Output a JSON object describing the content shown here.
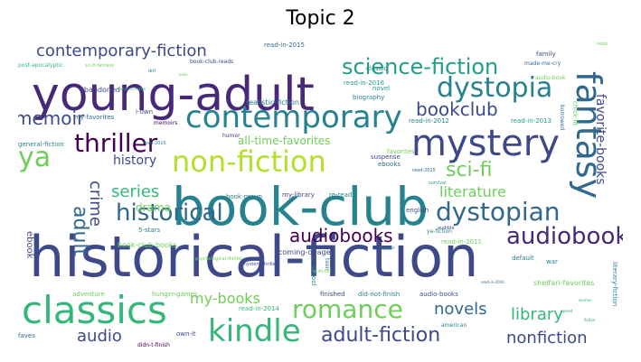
{
  "chart_data": {
    "type": "wordcloud",
    "title": "Topic 2",
    "colors": [
      "#440154",
      "#482878",
      "#3e4989",
      "#31688e",
      "#26828e",
      "#1f9e89",
      "#35b779",
      "#6ece58",
      "#b5de2b",
      "#fde725"
    ],
    "words": [
      {
        "text": "historical-fiction",
        "weight": 100
      },
      {
        "text": "book-club",
        "weight": 82
      },
      {
        "text": "young-adult",
        "weight": 78
      },
      {
        "text": "classics",
        "weight": 60
      },
      {
        "text": "mystery",
        "weight": 56
      },
      {
        "text": "contemporary",
        "weight": 52
      },
      {
        "text": "fantasy",
        "weight": 50
      },
      {
        "text": "kindle",
        "weight": 42
      },
      {
        "text": "non-fiction",
        "weight": 42
      },
      {
        "text": "dystopia",
        "weight": 40
      },
      {
        "text": "ya",
        "weight": 38
      },
      {
        "text": "romance",
        "weight": 36
      },
      {
        "text": "dystopian",
        "weight": 36
      },
      {
        "text": "thriller",
        "weight": 34
      },
      {
        "text": "audiobook",
        "weight": 34
      },
      {
        "text": "historical",
        "weight": 34
      },
      {
        "text": "science-fiction",
        "weight": 32
      },
      {
        "text": "adult-fiction",
        "weight": 30
      },
      {
        "text": "adult",
        "weight": 30
      },
      {
        "text": "memoir",
        "weight": 28
      },
      {
        "text": "bookclub",
        "weight": 28
      },
      {
        "text": "sci-fi",
        "weight": 28
      },
      {
        "text": "contemporary-fiction",
        "weight": 26
      },
      {
        "text": "audiobooks",
        "weight": 26
      },
      {
        "text": "series",
        "weight": 24
      },
      {
        "text": "novels",
        "weight": 24
      },
      {
        "text": "library",
        "weight": 24
      },
      {
        "text": "audio",
        "weight": 22
      },
      {
        "text": "crime",
        "weight": 22
      },
      {
        "text": "nonfiction",
        "weight": 22
      },
      {
        "text": "my-books",
        "weight": 22
      },
      {
        "text": "literature",
        "weight": 20
      },
      {
        "text": "favorite-books",
        "weight": 18
      },
      {
        "text": "history",
        "weight": 18
      },
      {
        "text": "all-time-favorites",
        "weight": 16
      },
      {
        "text": "drama",
        "weight": 14
      },
      {
        "text": "ebook",
        "weight": 12
      },
      {
        "text": "book-club-books",
        "weight": 10
      },
      {
        "text": "coming-of-age",
        "weight": 9
      },
      {
        "text": "shelfari-favorites",
        "weight": 9
      },
      {
        "text": "realistic-fiction",
        "weight": 9
      },
      {
        "text": "read-in-2016",
        "weight": 8
      },
      {
        "text": "read-in-2015",
        "weight": 8
      },
      {
        "text": "read-in-2012",
        "weight": 8
      },
      {
        "text": "read-in-2013",
        "weight": 8
      },
      {
        "text": "read-in-2014",
        "weight": 8
      },
      {
        "text": "read-in-2011",
        "weight": 8
      },
      {
        "text": "classic",
        "weight": 8
      },
      {
        "text": "novel",
        "weight": 8
      },
      {
        "text": "biography",
        "weight": 8
      },
      {
        "text": "chick-lit",
        "weight": 7
      },
      {
        "text": "abandoned",
        "weight": 8
      },
      {
        "text": "my-favorites",
        "weight": 7
      },
      {
        "text": "i-own",
        "weight": 7
      },
      {
        "text": "general-fiction",
        "weight": 7
      },
      {
        "text": "suspense",
        "weight": 7
      },
      {
        "text": "ebooks",
        "weight": 7
      },
      {
        "text": "favorites",
        "weight": 7
      },
      {
        "text": "5-stars",
        "weight": 6
      },
      {
        "text": "book-group",
        "weight": 6
      },
      {
        "text": "my-library",
        "weight": 6
      },
      {
        "text": "re-read",
        "weight": 6
      },
      {
        "text": "english",
        "weight": 6
      },
      {
        "text": "survival",
        "weight": 5
      },
      {
        "text": "default",
        "weight": 7
      },
      {
        "text": "war",
        "weight": 6
      },
      {
        "text": "school",
        "weight": 6
      },
      {
        "text": "teen",
        "weight": 5
      },
      {
        "text": "adventure",
        "weight": 6
      },
      {
        "text": "hunger-games",
        "weight": 6
      },
      {
        "text": "finished",
        "weight": 6
      },
      {
        "text": "did-not-finish",
        "weight": 6
      },
      {
        "text": "audio-books",
        "weight": 6
      },
      {
        "text": "literary-fiction",
        "weight": 6
      },
      {
        "text": "own-it",
        "weight": 6
      },
      {
        "text": "american",
        "weight": 5
      },
      {
        "text": "didn-t-finish",
        "weight": 5
      },
      {
        "text": "faves",
        "weight": 5
      },
      {
        "text": "post-apocalyptic",
        "weight": 5
      },
      {
        "text": "sci-fi-fantasy",
        "weight": 4
      },
      {
        "text": "book-club-reads",
        "weight": 5
      },
      {
        "text": "made-me-cry",
        "weight": 5
      },
      {
        "text": "family",
        "weight": 5
      },
      {
        "text": "audio-book",
        "weight": 5
      },
      {
        "text": "borrowed",
        "weight": 5
      },
      {
        "text": "memoirs",
        "weight": 5
      },
      {
        "text": "humor",
        "weight": 5
      },
      {
        "text": "audible",
        "weight": 5
      },
      {
        "text": "psychological-thriller",
        "weight": 5
      },
      {
        "text": "wish-list",
        "weight": 4
      },
      {
        "text": "ya-fiction",
        "weight": 5
      },
      {
        "text": "mystery-thriller",
        "weight": 5
      },
      {
        "text": "read-2016",
        "weight": 4
      },
      {
        "text": "read-2015",
        "weight": 4
      },
      {
        "text": "dnf",
        "weight": 4
      },
      {
        "text": "kobo",
        "weight": 4
      },
      {
        "text": "to-read",
        "weight": 4
      },
      {
        "text": "owned",
        "weight": 4
      },
      {
        "text": "nook",
        "weight": 4
      },
      {
        "text": "fiction",
        "weight": 4
      },
      {
        "text": "romance-fiction",
        "weight": 4
      },
      {
        "text": "read-in-2010",
        "weight": 4
      },
      {
        "text": "women",
        "weight": 4
      }
    ]
  }
}
